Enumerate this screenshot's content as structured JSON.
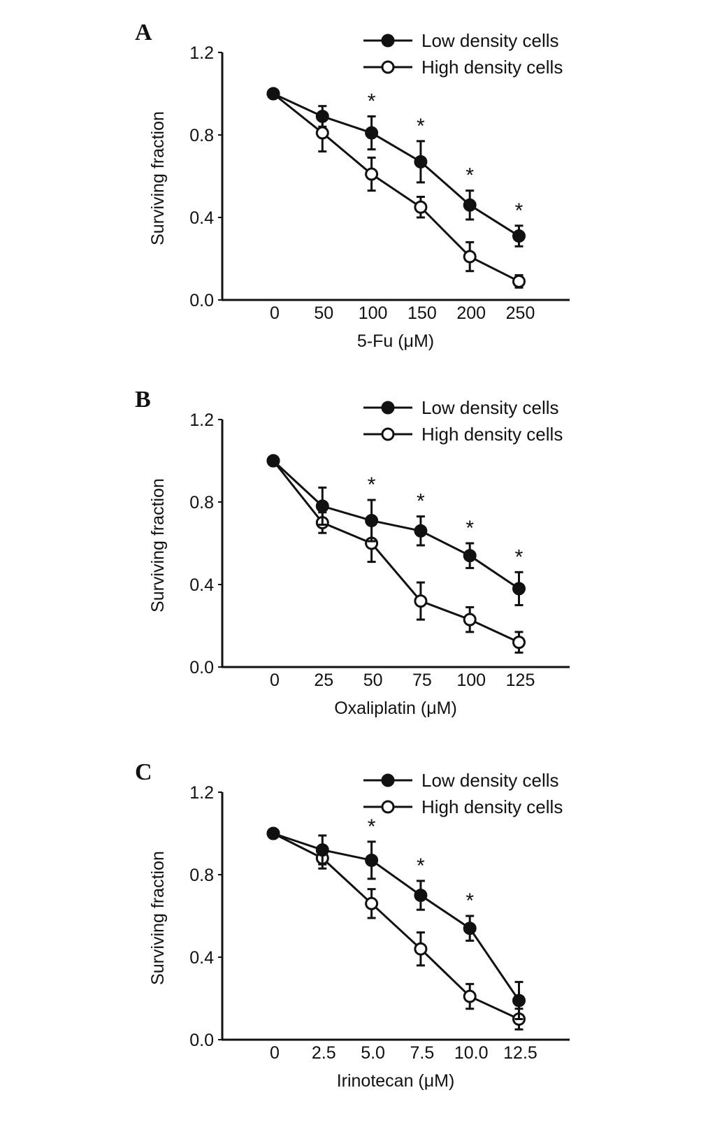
{
  "chart_data": [
    {
      "type": "line",
      "panel_label": "A",
      "xlabel": "5-Fu (μM)",
      "ylabel": "Surviving fraction",
      "categories": [
        "0",
        "50",
        "100",
        "150",
        "200",
        "250"
      ],
      "ylim": [
        0,
        1.2
      ],
      "yticks": [
        "0.0",
        "0.4",
        "0.8",
        "1.2"
      ],
      "legend_placement": "top-right",
      "series": [
        {
          "name": "Low density cells",
          "marker": "filled",
          "values": [
            1.0,
            0.89,
            0.81,
            0.67,
            0.46,
            0.31
          ],
          "errors": [
            0,
            0.05,
            0.08,
            0.1,
            0.07,
            0.05
          ],
          "significant": [
            false,
            false,
            true,
            true,
            true,
            true
          ]
        },
        {
          "name": "High density cells",
          "marker": "open",
          "values": [
            1.0,
            0.81,
            0.61,
            0.45,
            0.21,
            0.09
          ],
          "errors": [
            0,
            0.09,
            0.08,
            0.05,
            0.07,
            0.03
          ]
        }
      ],
      "annotation": "*"
    },
    {
      "type": "line",
      "panel_label": "B",
      "xlabel": "Oxaliplatin (μM)",
      "ylabel": "Surviving fraction",
      "categories": [
        "0",
        "25",
        "50",
        "75",
        "100",
        "125"
      ],
      "ylim": [
        0,
        1.2
      ],
      "yticks": [
        "0.0",
        "0.4",
        "0.8",
        "1.2"
      ],
      "legend_placement": "top-right",
      "series": [
        {
          "name": "Low density cells",
          "marker": "filled",
          "values": [
            1.0,
            0.78,
            0.71,
            0.66,
            0.54,
            0.38
          ],
          "errors": [
            0,
            0.09,
            0.1,
            0.07,
            0.06,
            0.08
          ],
          "significant": [
            false,
            false,
            true,
            true,
            true,
            true
          ]
        },
        {
          "name": "High density cells",
          "marker": "open",
          "values": [
            1.0,
            0.7,
            0.6,
            0.32,
            0.23,
            0.12
          ],
          "errors": [
            0,
            0.05,
            0.09,
            0.09,
            0.06,
            0.05
          ]
        }
      ],
      "annotation": "*"
    },
    {
      "type": "line",
      "panel_label": "C",
      "xlabel": "Irinotecan (μM)",
      "ylabel": "Surviving fraction",
      "categories": [
        "0",
        "2.5",
        "5.0",
        "7.5",
        "10.0",
        "12.5"
      ],
      "ylim": [
        0,
        1.2
      ],
      "yticks": [
        "0.0",
        "0.4",
        "0.8",
        "1.2"
      ],
      "legend_placement": "top-right",
      "series": [
        {
          "name": "Low density cells",
          "marker": "filled",
          "values": [
            1.0,
            0.92,
            0.87,
            0.7,
            0.54,
            0.19
          ],
          "errors": [
            0,
            0.07,
            0.09,
            0.07,
            0.06,
            0.09
          ],
          "significant": [
            false,
            false,
            true,
            true,
            true,
            false
          ]
        },
        {
          "name": "High density cells",
          "marker": "open",
          "values": [
            1.0,
            0.88,
            0.66,
            0.44,
            0.21,
            0.1
          ],
          "errors": [
            0,
            0.05,
            0.07,
            0.08,
            0.06,
            0.05
          ]
        }
      ],
      "annotation": "*"
    }
  ]
}
